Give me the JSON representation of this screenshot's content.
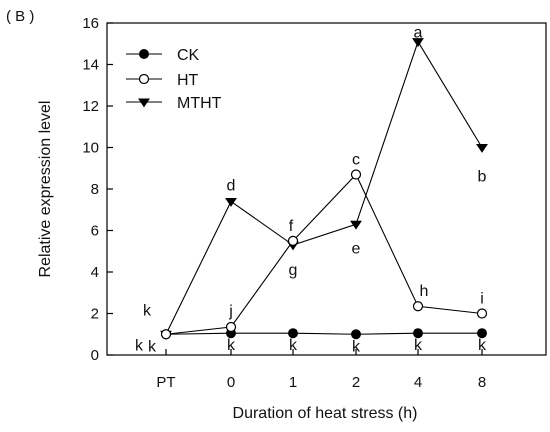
{
  "chart_data": {
    "type": "line",
    "panel_label": "( B )",
    "xlabel": "Duration of heat stress (h)",
    "ylabel": "Relative expression level",
    "categories": [
      "PT",
      "0",
      "1",
      "2",
      "4",
      "8"
    ],
    "ylim": [
      0,
      16
    ],
    "yticks": [
      0,
      2,
      4,
      6,
      8,
      10,
      12,
      14,
      16
    ],
    "grid": false,
    "legend_position": "top-left",
    "series": [
      {
        "name": "CK",
        "marker": "filled-circle",
        "values": [
          1.0,
          1.05,
          1.05,
          1.0,
          1.05,
          1.05
        ],
        "labels": [
          "k",
          "k",
          "k",
          "k",
          "k",
          "k"
        ]
      },
      {
        "name": "HT",
        "marker": "open-circle",
        "values": [
          1.0,
          1.35,
          5.5,
          8.7,
          2.35,
          2.0
        ],
        "labels": [
          "k",
          "j",
          "f",
          "c",
          "h",
          "i"
        ]
      },
      {
        "name": "MTHT",
        "marker": "filled-triangle-down",
        "values": [
          1.0,
          7.4,
          5.3,
          6.3,
          15.1,
          10.0
        ],
        "labels": [
          "k",
          "d",
          "g",
          "e",
          "a",
          "b"
        ]
      }
    ]
  }
}
